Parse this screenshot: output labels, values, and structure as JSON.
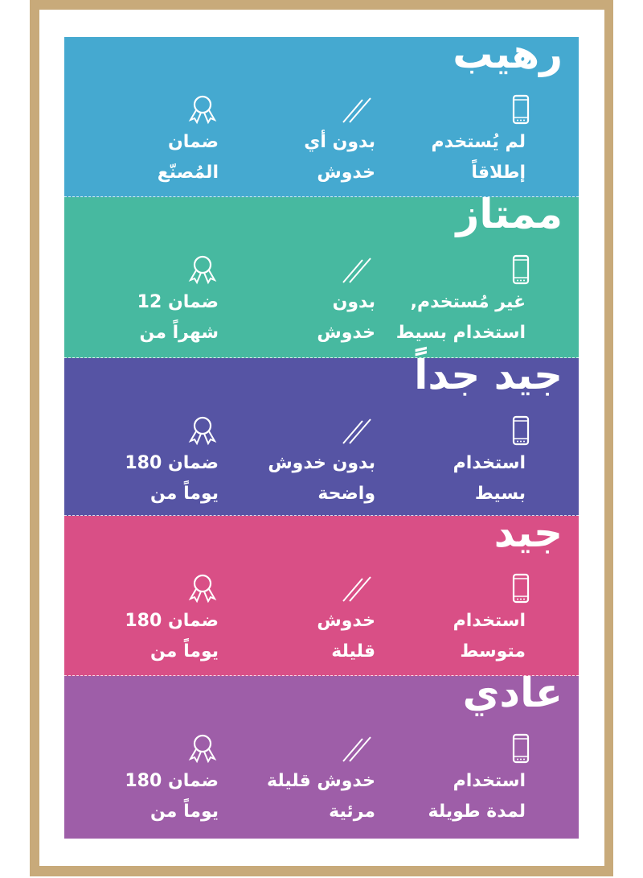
{
  "colors": {
    "frame": "#c8aa7a",
    "sections": [
      "#45a9d0",
      "#47b9a0",
      "#5654a4",
      "#d94f86",
      "#9e5ea8"
    ]
  },
  "icons": [
    "phone-icon",
    "scratch-icon",
    "medal-icon"
  ],
  "sections": [
    {
      "title": "رهيب",
      "usage": [
        "لم يُستخدم",
        "إطلاقاً"
      ],
      "scratches": [
        "بدون أي",
        "خدوش"
      ],
      "warranty": [
        "ضمان",
        "المُصنّع"
      ]
    },
    {
      "title": "ممتاز",
      "usage": [
        "غير مُستخدم,",
        "استخدام بسيط"
      ],
      "scratches": [
        "بدون",
        "خدوش"
      ],
      "warranty": [
        "ضمان 12",
        "شهراً من"
      ]
    },
    {
      "title": "جيد جداً",
      "usage": [
        "استخدام",
        "بسيط"
      ],
      "scratches": [
        "بدون خدوش",
        "واضحة"
      ],
      "warranty": [
        "ضمان 180",
        "يوماً من"
      ]
    },
    {
      "title": "جيد",
      "usage": [
        "استخدام",
        "متوسط"
      ],
      "scratches": [
        "خدوش",
        "قليلة"
      ],
      "warranty": [
        "ضمان 180",
        "يوماً من"
      ]
    },
    {
      "title": "عادي",
      "usage": [
        "استخدام",
        "لمدة طويلة"
      ],
      "scratches": [
        "خدوش قليلة",
        "مرئية"
      ],
      "warranty": [
        "ضمان 180",
        "يوماً من"
      ]
    }
  ]
}
